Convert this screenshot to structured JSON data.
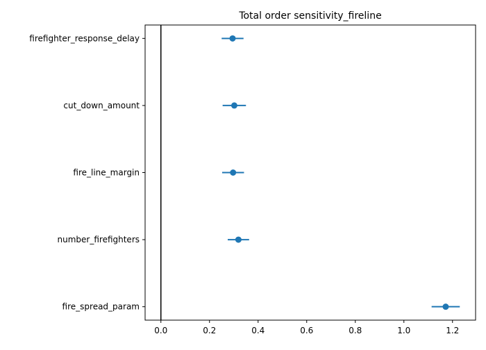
{
  "chart_data": {
    "type": "scatter",
    "title": "Total order sensitivity_fireline",
    "xlabel": "",
    "ylabel": "",
    "xlim": [
      -0.065,
      1.295
    ],
    "x_ticks": [
      0.0,
      0.2,
      0.4,
      0.6,
      0.8,
      1.0,
      1.2
    ],
    "x_tick_labels": [
      "0.0",
      "0.2",
      "0.4",
      "0.6",
      "0.8",
      "1.0",
      "1.2"
    ],
    "categories": [
      "firefighter_response_delay",
      "cut_down_amount",
      "fire_line_margin",
      "number_firefighters",
      "fire_spread_param"
    ],
    "values": [
      0.295,
      0.302,
      0.297,
      0.319,
      1.172
    ],
    "errors": [
      0.045,
      0.048,
      0.045,
      0.044,
      0.058
    ],
    "reference_line_x": 0.0,
    "grid": false,
    "legend": "none",
    "colors": {
      "series": "#1f77b4",
      "reference_line": "#000000",
      "axes": "#000000"
    }
  }
}
